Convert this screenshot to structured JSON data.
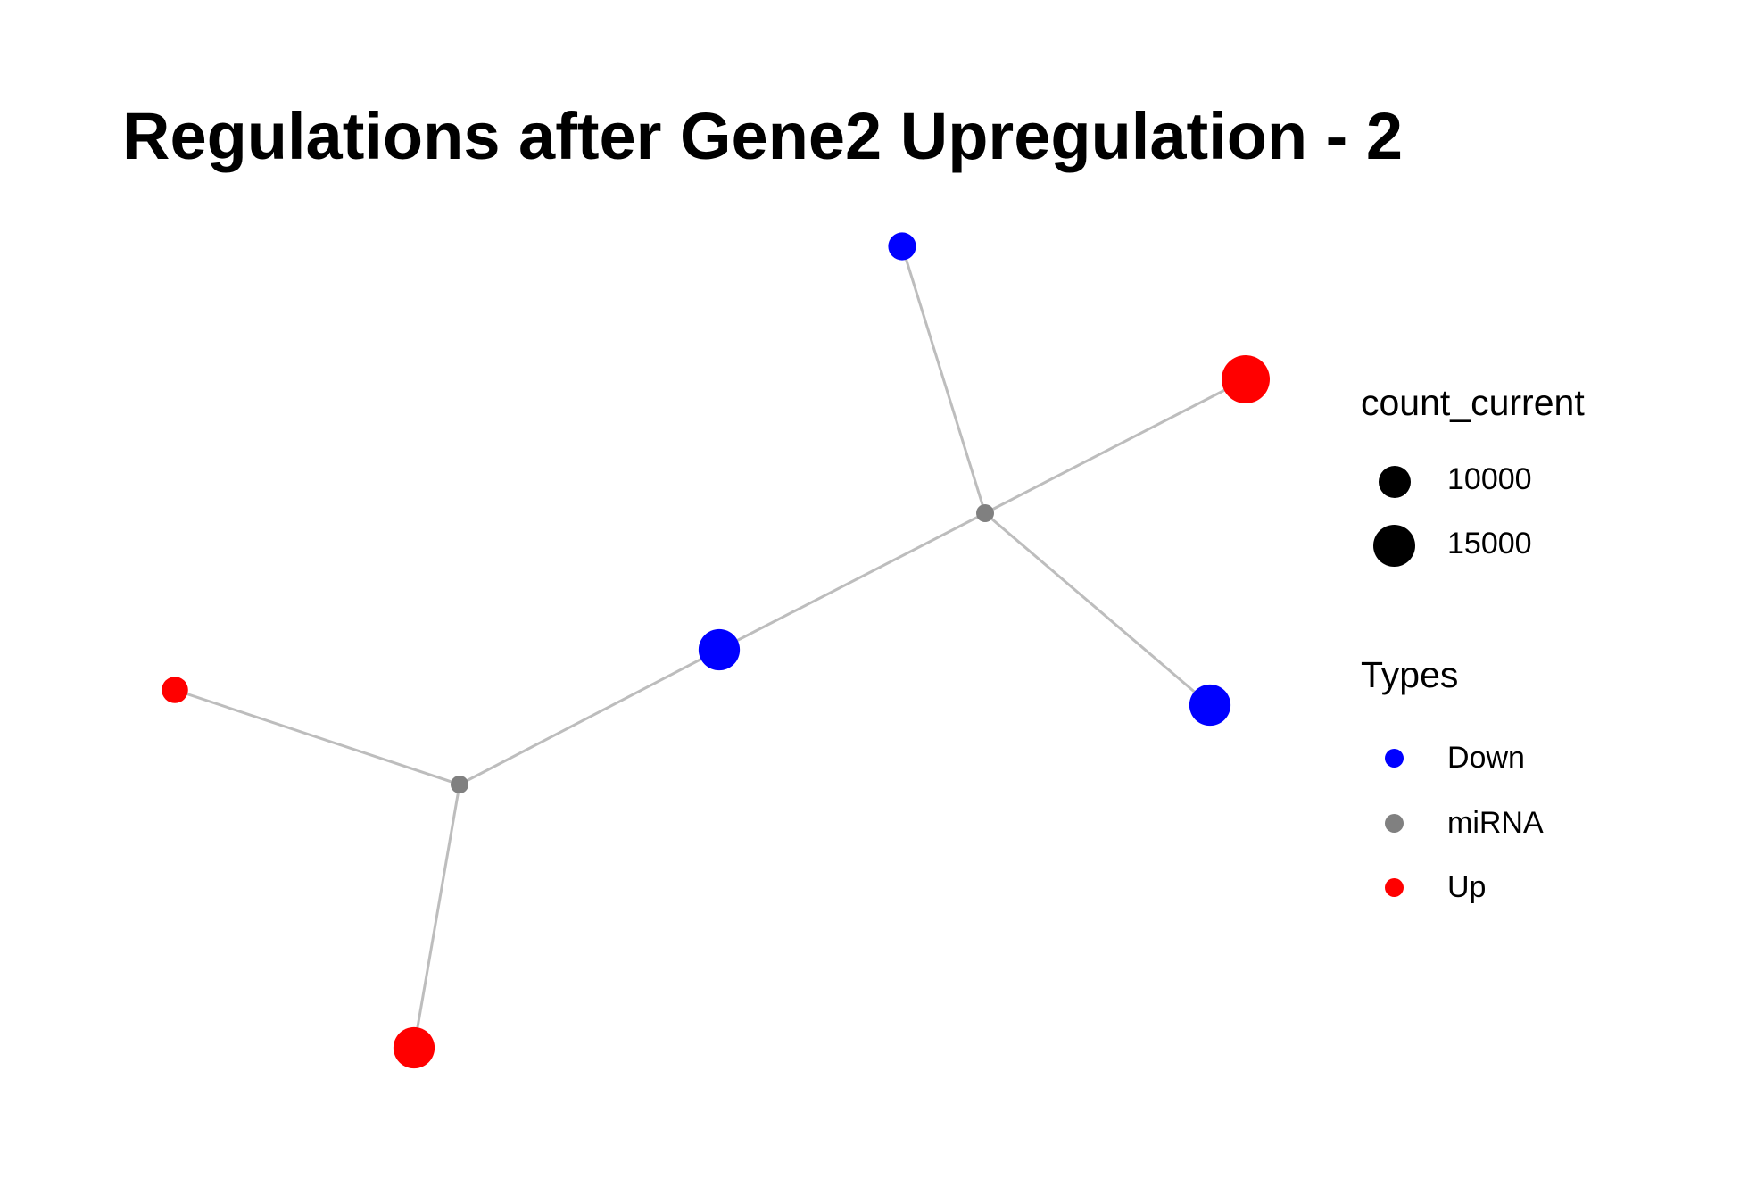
{
  "title": "Regulations after Gene2 Upregulation - 2",
  "colors": {
    "Down": "#0000ff",
    "miRNA": "#808080",
    "Up": "#ff0000",
    "edge": "#bdbdbd",
    "size_key": "#000000"
  },
  "legend_size": {
    "title": "count_current",
    "items": [
      {
        "label": "10000",
        "value": 10000
      },
      {
        "label": "15000",
        "value": 15000
      }
    ]
  },
  "legend_type": {
    "title": "Types",
    "items": [
      {
        "label": "Down",
        "type": "Down"
      },
      {
        "label": "miRNA",
        "type": "miRNA"
      },
      {
        "label": "Up",
        "type": "Up"
      }
    ]
  },
  "network": {
    "nodes": [
      {
        "id": "up_large",
        "type": "Up",
        "count": 15000
      },
      {
        "id": "down_top",
        "type": "Down",
        "count": 5000
      },
      {
        "id": "mirna_right",
        "type": "miRNA",
        "count": null
      },
      {
        "id": "down_middle",
        "type": "Down",
        "count": 11000
      },
      {
        "id": "down_right",
        "type": "Down",
        "count": 11000
      },
      {
        "id": "up_small",
        "type": "Up",
        "count": 4500
      },
      {
        "id": "mirna_left",
        "type": "miRNA",
        "count": null
      },
      {
        "id": "up_bottom",
        "type": "Up",
        "count": 11000
      }
    ],
    "edges": [
      [
        "down_top",
        "mirna_right"
      ],
      [
        "up_large",
        "mirna_right"
      ],
      [
        "mirna_right",
        "down_right"
      ],
      [
        "mirna_right",
        "down_middle"
      ],
      [
        "down_middle",
        "mirna_left"
      ],
      [
        "up_small",
        "mirna_left"
      ],
      [
        "mirna_left",
        "up_bottom"
      ]
    ]
  }
}
